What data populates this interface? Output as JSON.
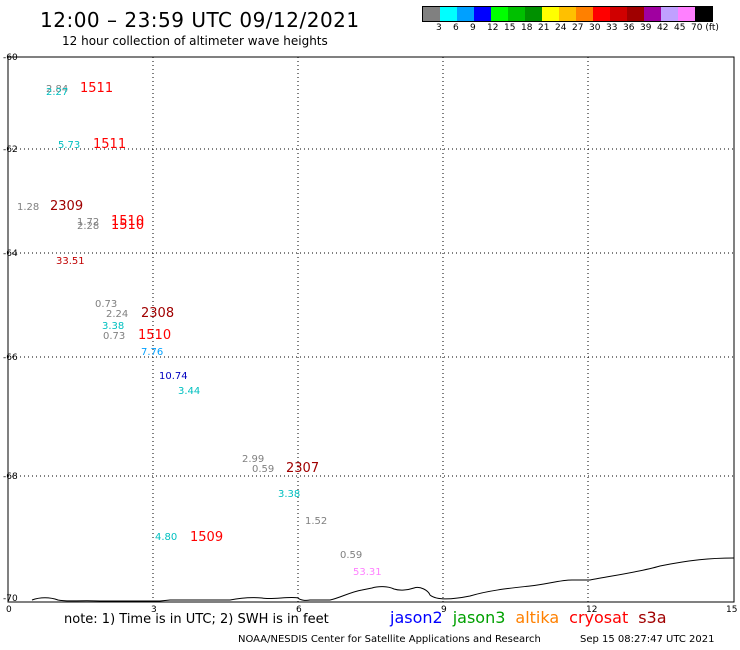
{
  "header": {
    "title": "12:00 – 23:59 UTC 09/12/2021",
    "subtitle": "12 hour collection of altimeter wave heights"
  },
  "color_scale": {
    "labels": [
      "3",
      "6",
      "9",
      "12",
      "15",
      "18",
      "21",
      "24",
      "27",
      "30",
      "33",
      "36",
      "39",
      "42",
      "45",
      "70 (ft)"
    ],
    "colors": [
      "#808080",
      "#00ffff",
      "#00a0ff",
      "#0000ff",
      "#00ff00",
      "#00c000",
      "#009000",
      "#ffff00",
      "#ffc000",
      "#ff8000",
      "#ff0000",
      "#d00000",
      "#a00000",
      "#a000a0",
      "#c0a0ff",
      "#ff80ff",
      "#000000"
    ]
  },
  "map": {
    "lat_labels": [
      "-60",
      "-62",
      "-64",
      "-66",
      "-68",
      "-70"
    ],
    "lon_labels": [
      "0",
      "3",
      "6",
      "9",
      "12",
      "15"
    ],
    "grid": true
  },
  "observations": [
    {
      "text": "2.84",
      "color": "#808080"
    },
    {
      "text": "2.27",
      "color": "#00c0c0"
    },
    {
      "text": "1511",
      "color": "#ff0000",
      "kind": "pass"
    },
    {
      "text": "5.73",
      "color": "#00c0c0"
    },
    {
      "text": "1511",
      "color": "#ff0000",
      "kind": "pass"
    },
    {
      "text": "1.28",
      "color": "#808080"
    },
    {
      "text": "2309",
      "color": "#a00000",
      "kind": "pass"
    },
    {
      "text": "1.72",
      "color": "#808080"
    },
    {
      "text": "2.28",
      "color": "#808080"
    },
    {
      "text": "1510",
      "color": "#ff0000",
      "kind": "pass"
    },
    {
      "text": "1510",
      "color": "#ff0000",
      "kind": "pass"
    },
    {
      "text": "33.51",
      "color": "#c00000"
    },
    {
      "text": "0.73",
      "color": "#808080"
    },
    {
      "text": "2.24",
      "color": "#808080"
    },
    {
      "text": "2308",
      "color": "#a00000",
      "kind": "pass"
    },
    {
      "text": "3.38",
      "color": "#00c0c0"
    },
    {
      "text": "0.73",
      "color": "#808080"
    },
    {
      "text": "1510",
      "color": "#ff0000",
      "kind": "pass"
    },
    {
      "text": "7.76",
      "color": "#00a0ff"
    },
    {
      "text": "10.74",
      "color": "#0000c0"
    },
    {
      "text": "3.44",
      "color": "#00c0c0"
    },
    {
      "text": "2.99",
      "color": "#808080"
    },
    {
      "text": "0.59",
      "color": "#808080"
    },
    {
      "text": "2307",
      "color": "#a00000",
      "kind": "pass"
    },
    {
      "text": "3.38",
      "color": "#00c0c0"
    },
    {
      "text": "1.52",
      "color": "#808080"
    },
    {
      "text": "4.80",
      "color": "#00c0c0"
    },
    {
      "text": "1509",
      "color": "#ff0000",
      "kind": "pass"
    },
    {
      "text": "0.59",
      "color": "#808080"
    },
    {
      "text": "53.31",
      "color": "#ff80ff"
    }
  ],
  "footer": {
    "note": "note: 1) Time is in UTC; 2) SWH is in feet",
    "legend": [
      {
        "label": "jason2",
        "color": "#0000ff"
      },
      {
        "label": "jason3",
        "color": "#00a000"
      },
      {
        "label": "altika",
        "color": "#ff8000"
      },
      {
        "label": "cryosat",
        "color": "#ff0000"
      },
      {
        "label": "s3a",
        "color": "#a00000"
      }
    ],
    "credit": "NOAA/NESDIS Center for Satellite Applications and Research",
    "timestamp": "Sep 15 08:27:47 UTC 2021"
  }
}
